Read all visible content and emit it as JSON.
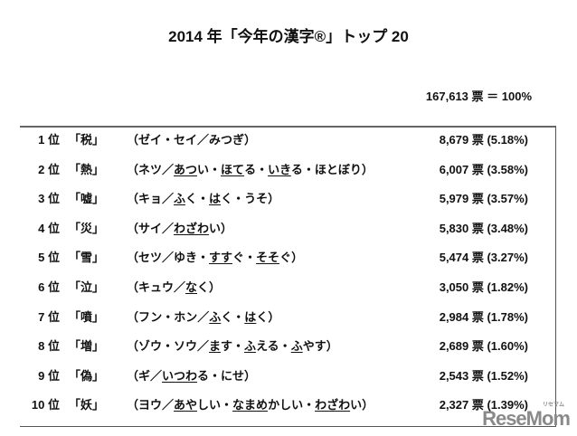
{
  "title": "2014 年「今年の漢字®」トップ 20",
  "total": "167,613 票 ＝ 100%",
  "rows": [
    {
      "rank": "1 位",
      "kanji": "「税」",
      "reading": [
        [
          "（ゼイ・セイ／みつぎ）",
          false
        ]
      ],
      "count": "8,679 票 (5.18%)"
    },
    {
      "rank": "2 位",
      "kanji": "「熱」",
      "reading": [
        [
          "（ネツ／",
          false
        ],
        [
          "あつ",
          true
        ],
        [
          "い・",
          false
        ],
        [
          "ほて",
          true
        ],
        [
          "る・",
          false
        ],
        [
          "いき",
          true
        ],
        [
          "る・ほとぼり）",
          false
        ]
      ],
      "count": "6,007 票 (3.58%)"
    },
    {
      "rank": "3 位",
      "kanji": "「嘘」",
      "reading": [
        [
          "（キョ／",
          false
        ],
        [
          "ふ",
          true
        ],
        [
          "く・",
          false
        ],
        [
          "は",
          true
        ],
        [
          "く・うそ）",
          false
        ]
      ],
      "count": "5,979 票 (3.57%)"
    },
    {
      "rank": "4 位",
      "kanji": "「災」",
      "reading": [
        [
          "（サイ／",
          false
        ],
        [
          "わざわ",
          true
        ],
        [
          "い）",
          false
        ]
      ],
      "count": "5,830 票 (3.48%)"
    },
    {
      "rank": "5 位",
      "kanji": "「雪」",
      "reading": [
        [
          "（セツ／ゆき・",
          false
        ],
        [
          "すす",
          true
        ],
        [
          "ぐ・",
          false
        ],
        [
          "そそ",
          true
        ],
        [
          "ぐ）",
          false
        ]
      ],
      "count": "5,474 票 (3.27%)"
    },
    {
      "rank": "6 位",
      "kanji": "「泣」",
      "reading": [
        [
          "（キュウ／",
          false
        ],
        [
          "な",
          true
        ],
        [
          "く）",
          false
        ]
      ],
      "count": "3,050 票 (1.82%)"
    },
    {
      "rank": "7 位",
      "kanji": "「噴」",
      "reading": [
        [
          "（フン・ホン／",
          false
        ],
        [
          "ふ",
          true
        ],
        [
          "く・",
          false
        ],
        [
          "は",
          true
        ],
        [
          "く）",
          false
        ]
      ],
      "count": "2,984 票 (1.78%)"
    },
    {
      "rank": "8 位",
      "kanji": "「増」",
      "reading": [
        [
          "（ゾウ・ソウ／",
          false
        ],
        [
          "ま",
          true
        ],
        [
          "す・",
          false
        ],
        [
          "ふ",
          true
        ],
        [
          "える・",
          false
        ],
        [
          "ふ",
          true
        ],
        [
          "やす）",
          false
        ]
      ],
      "count": "2,689 票 (1.60%)"
    },
    {
      "rank": "9 位",
      "kanji": "「偽」",
      "reading": [
        [
          "（ギ／",
          false
        ],
        [
          "いつわ",
          true
        ],
        [
          "る・にせ）",
          false
        ]
      ],
      "count": "2,543 票 (1.52%)"
    },
    {
      "rank": "10 位",
      "kanji": "「妖」",
      "reading": [
        [
          "（ヨウ／",
          false
        ],
        [
          "あや",
          true
        ],
        [
          "しい・",
          false
        ],
        [
          "なまめ",
          true
        ],
        [
          "かしい・",
          false
        ],
        [
          "わざわ",
          true
        ],
        [
          "い）",
          false
        ]
      ],
      "count": "2,327 票 (1.39%)"
    }
  ],
  "watermark": "ReseMom"
}
